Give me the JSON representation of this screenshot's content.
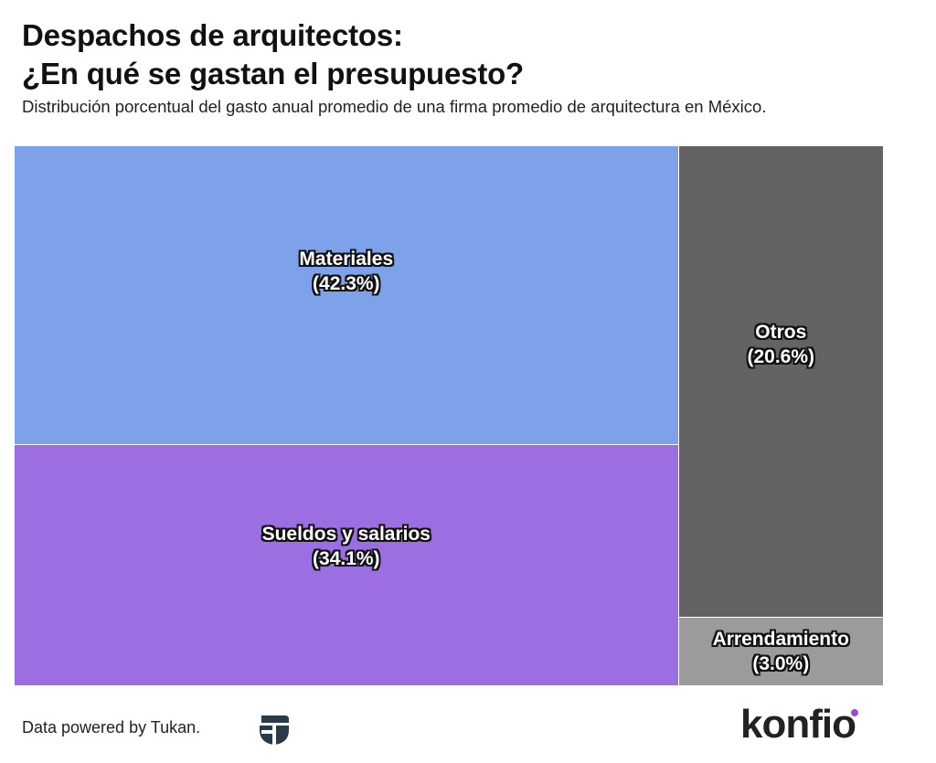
{
  "header": {
    "title_line1": "Despachos de arquitectos:",
    "title_line2": "¿En qué se gastan el presupuesto?",
    "subtitle": "Distribución porcentual del gasto anual promedio de una firma promedio de arquitectura en México."
  },
  "chart_data": {
    "type": "treemap",
    "title": "Despachos de arquitectos: ¿En qué se gastan el presupuesto?",
    "subtitle": "Distribución porcentual del gasto anual promedio de una firma promedio de arquitectura en México.",
    "unit": "%",
    "items": [
      {
        "name": "Materiales",
        "value": 42.3,
        "label": "(42.3%)",
        "color": "#7da2ea"
      },
      {
        "name": "Sueldos y salarios",
        "value": 34.1,
        "label": "(34.1%)",
        "color": "#9b6fe2"
      },
      {
        "name": "Otros",
        "value": 20.6,
        "label": "(20.6%)",
        "color": "#636363"
      },
      {
        "name": "Arrendamiento",
        "value": 3.0,
        "label": "(3.0%)",
        "color": "#9b9b9b"
      }
    ]
  },
  "footer": {
    "source": "Data powered by Tukan.",
    "tukan_logo_icon": "tukan-logo-icon",
    "brand": "konfio",
    "brand_dot_color": "#9a4dd8"
  }
}
